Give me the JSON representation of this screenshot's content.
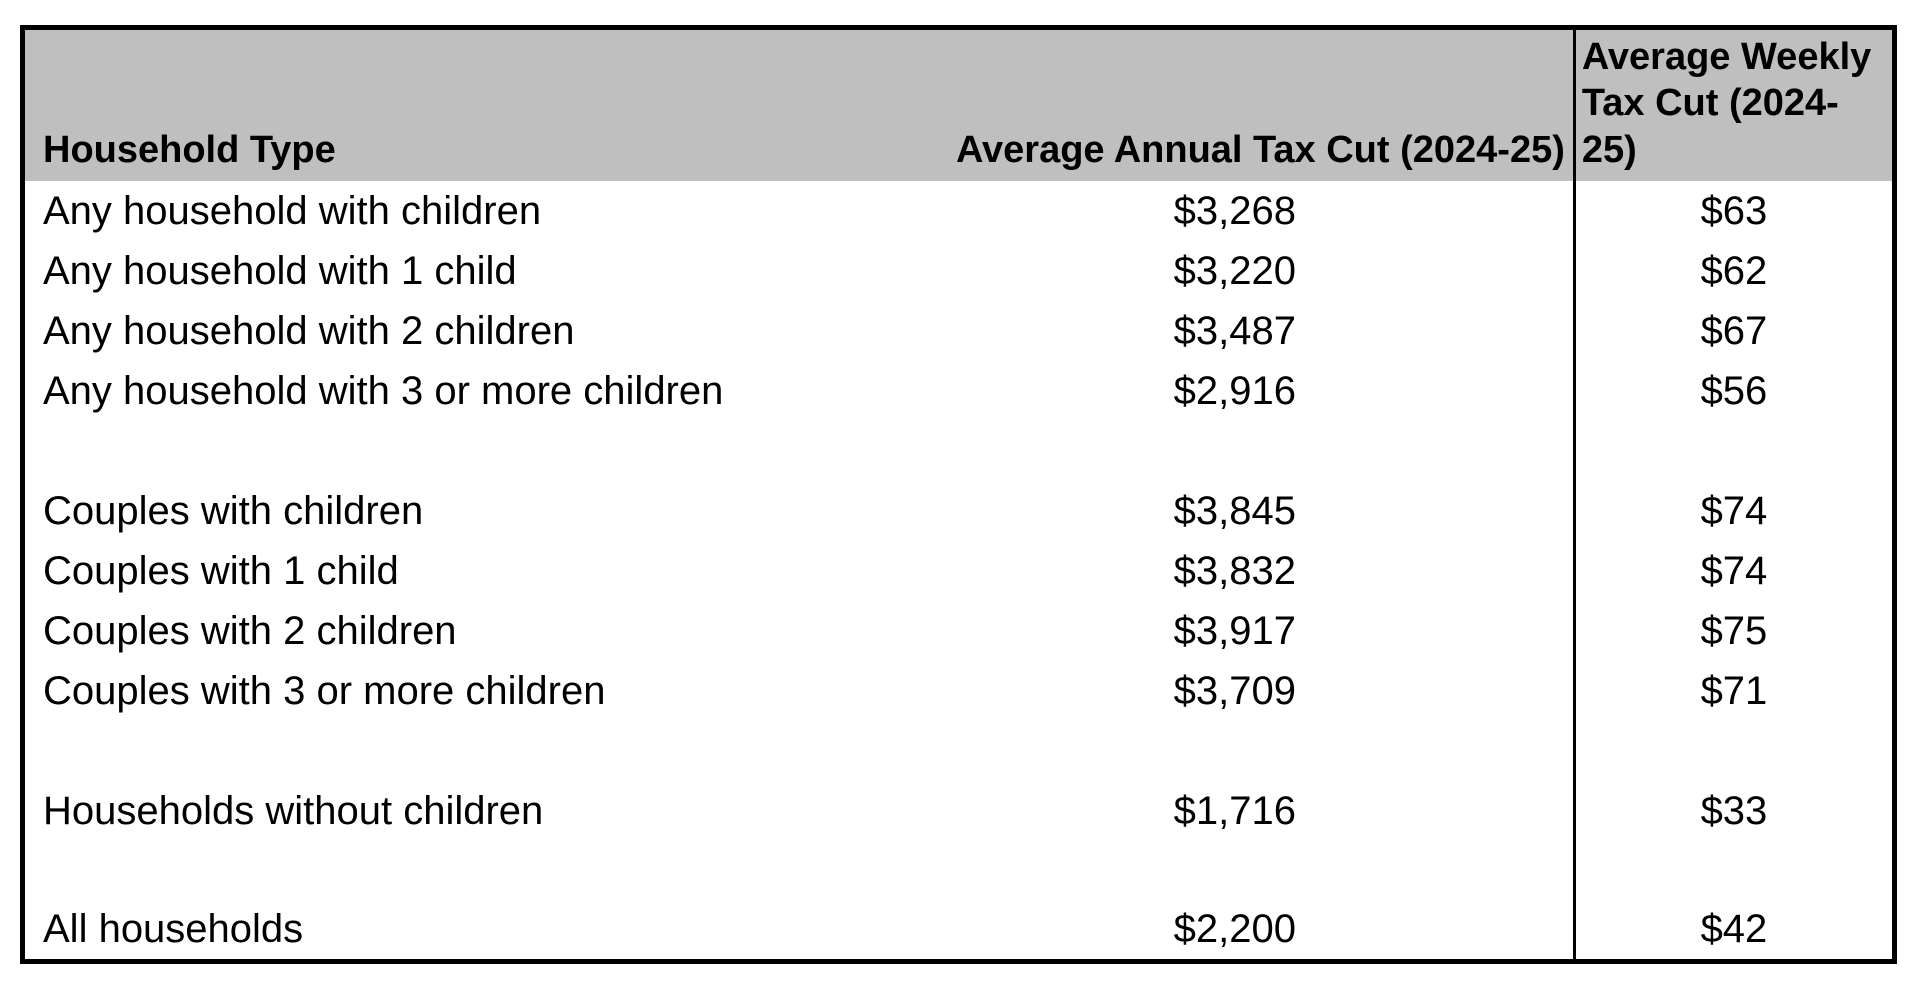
{
  "table": {
    "columns": [
      {
        "label": "Household Type"
      },
      {
        "label": "Average Annual Tax Cut (2024-25)"
      },
      {
        "label": "Average Weekly Tax Cut (2024-25)"
      }
    ],
    "rows": [
      [
        "Any household with children",
        "$3,268",
        "$63"
      ],
      [
        "Any household with 1 child",
        "$3,220",
        "$62"
      ],
      [
        "Any household with 2 children",
        "$3,487",
        "$67"
      ],
      [
        "Any household with 3 or more children",
        "$2,916",
        "$56"
      ],
      [
        "",
        "",
        ""
      ],
      [
        "Couples with children",
        "$3,845",
        "$74"
      ],
      [
        "Couples with 1 child",
        "$3,832",
        "$74"
      ],
      [
        "Couples with 2 children",
        "$3,917",
        "$75"
      ],
      [
        "Couples with 3 or more children",
        "$3,709",
        "$71"
      ],
      [
        "",
        "",
        ""
      ],
      [
        "Households without children",
        "$1,716",
        "$33"
      ],
      [
        "",
        "",
        ""
      ],
      [
        "All households",
        "$2,200",
        "$42"
      ]
    ]
  },
  "chart_data": {
    "type": "table",
    "title": "",
    "columns": [
      "Household Type",
      "Average Annual Tax Cut (2024-25)",
      "Average Weekly Tax Cut (2024-25)"
    ],
    "categories": [
      "Any household with children",
      "Any household with 1 child",
      "Any household with 2 children",
      "Any household with 3 or more children",
      "Couples with children",
      "Couples with 1 child",
      "Couples with 2 children",
      "Couples with 3 or more children",
      "Households without children",
      "All households"
    ],
    "series": [
      {
        "name": "Average Annual Tax Cut (2024-25)",
        "values": [
          3268,
          3220,
          3487,
          2916,
          3845,
          3832,
          3917,
          3709,
          1716,
          2200
        ]
      },
      {
        "name": "Average Weekly Tax Cut (2024-25)",
        "values": [
          63,
          62,
          67,
          56,
          74,
          74,
          75,
          71,
          33,
          42
        ]
      }
    ]
  },
  "colors": {
    "header_bg": "#bfbfbf",
    "border": "#000000",
    "text": "#000000",
    "page_bg": "#ffffff"
  }
}
